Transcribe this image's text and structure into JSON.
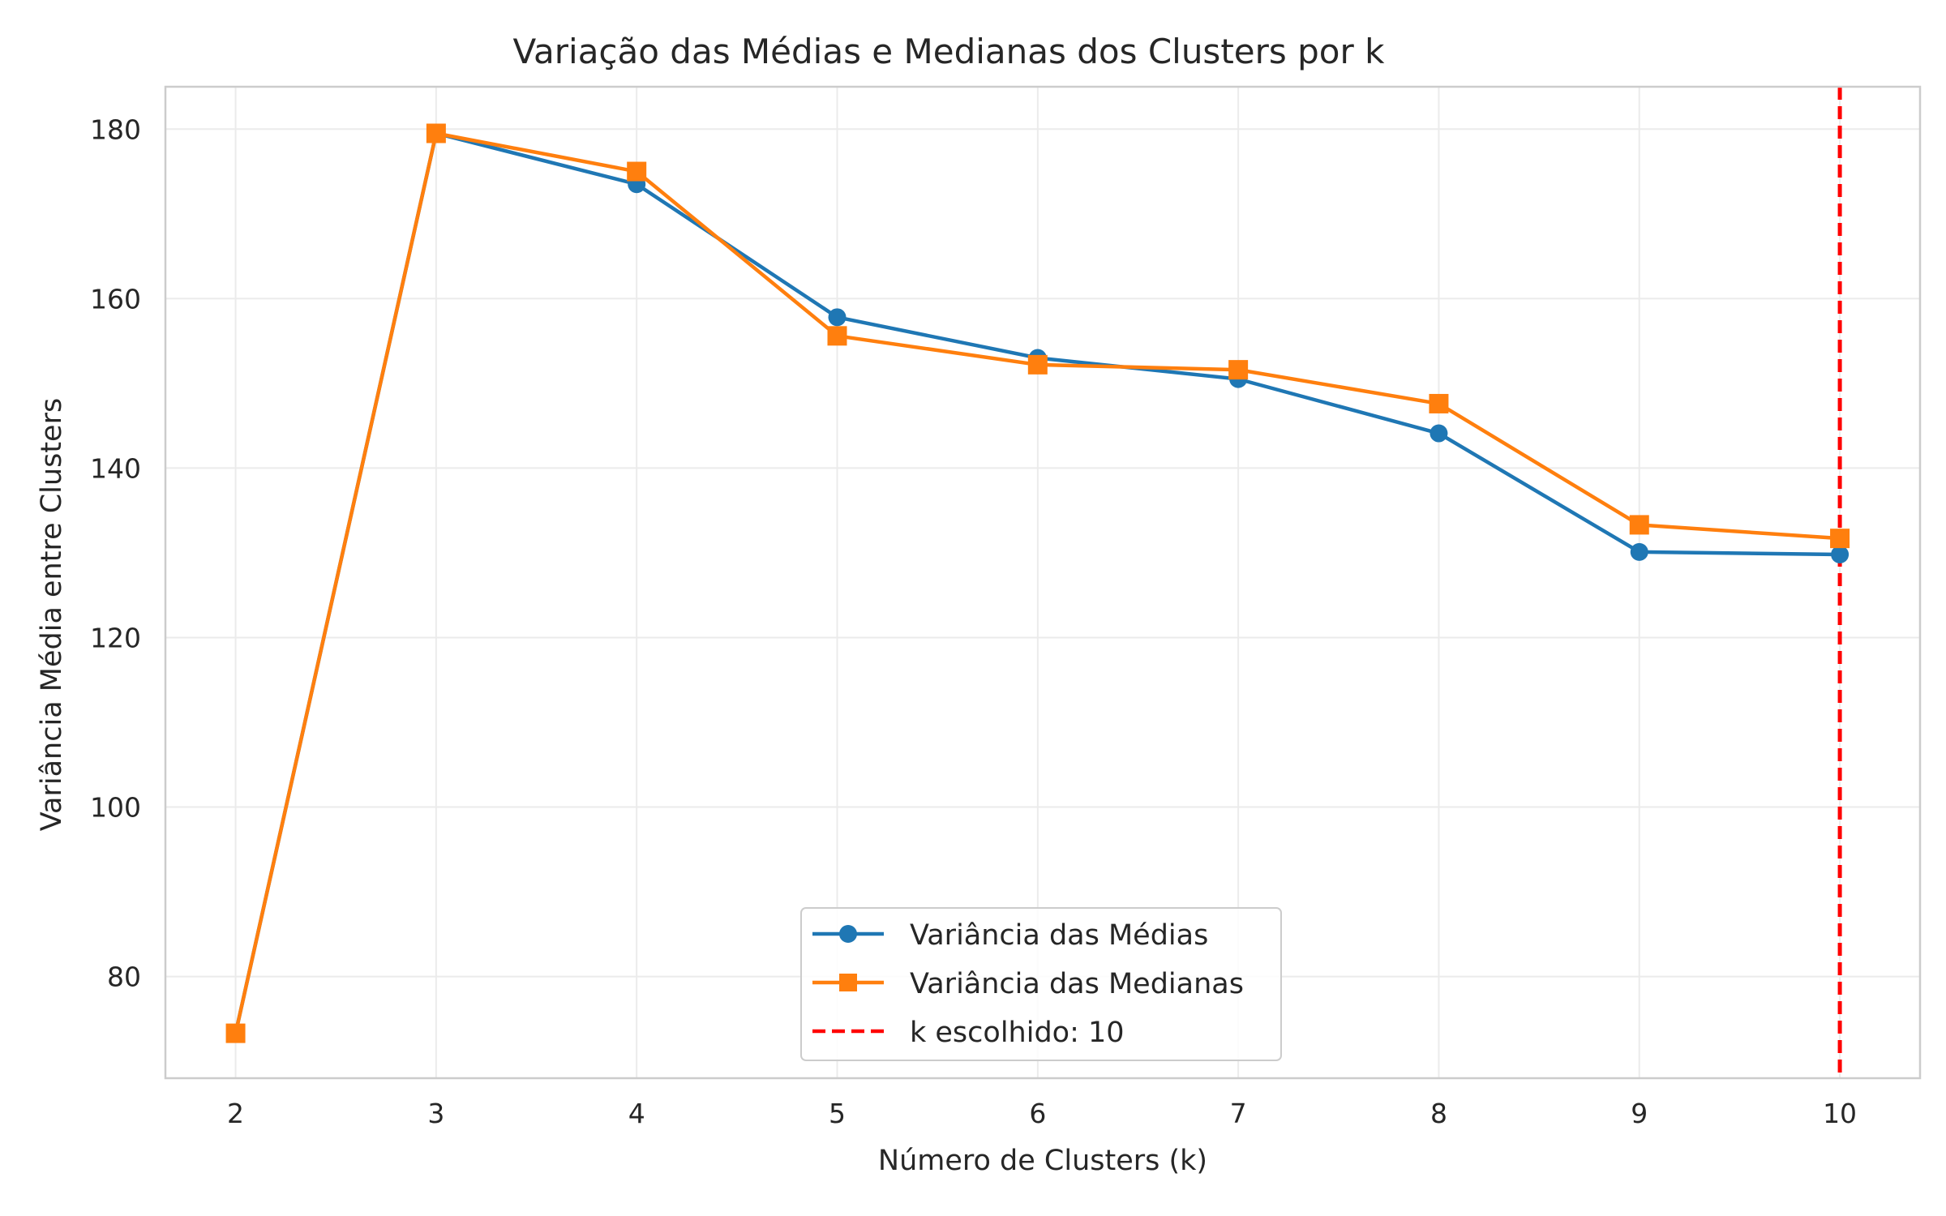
{
  "chart_data": {
    "type": "line",
    "title": "Variação das Médias e Medianas dos Clusters por k",
    "xlabel": "Número de Clusters (k)",
    "ylabel": "Variância Média entre Clusters",
    "x": [
      2,
      3,
      4,
      5,
      6,
      7,
      8,
      9,
      10
    ],
    "xticks": [
      "2",
      "3",
      "4",
      "5",
      "6",
      "7",
      "8",
      "9",
      "10"
    ],
    "yticks": [
      "80",
      "100",
      "120",
      "140",
      "160",
      "180"
    ],
    "ytick_values": [
      80,
      100,
      120,
      140,
      160,
      180
    ],
    "xlim": [
      1.65,
      10.4
    ],
    "ylim": [
      68,
      185
    ],
    "grid": true,
    "legend_position": "lower-center",
    "series": [
      {
        "name": "Variância das Médias",
        "values": [
          73.3,
          179.5,
          173.5,
          157.8,
          153.0,
          150.5,
          144.1,
          130.1,
          129.8
        ],
        "color": "#1f77b4",
        "marker": "circle"
      },
      {
        "name": "Variância das Medianas",
        "values": [
          73.3,
          179.5,
          175.0,
          155.6,
          152.2,
          151.6,
          147.6,
          133.3,
          131.7
        ],
        "color": "#ff7f0e",
        "marker": "square"
      }
    ],
    "vline": {
      "x": 10,
      "label": "k escolhido: 10",
      "color": "#ff0000",
      "style": "dashed"
    }
  }
}
